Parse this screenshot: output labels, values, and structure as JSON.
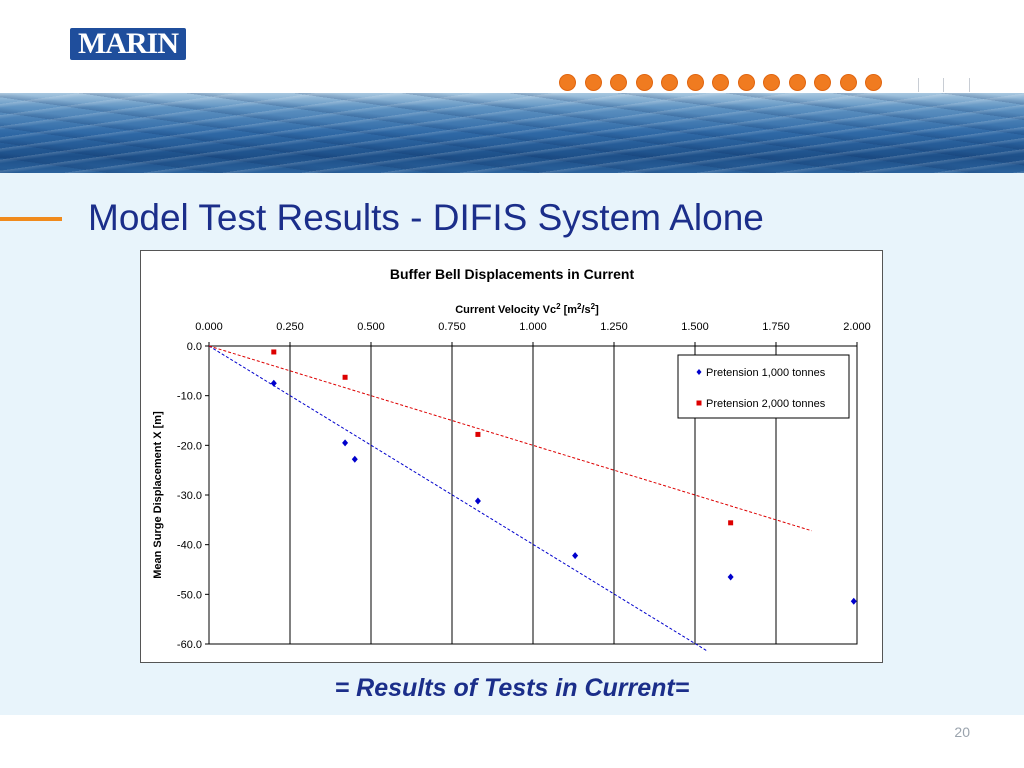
{
  "logo": {
    "text": "MARIN"
  },
  "slide": {
    "title": "Model Test Results - DIFIS System Alone",
    "caption": "= Results of Tests in Current=",
    "page_number": "20"
  },
  "colors": {
    "title": "#1b2e8a",
    "accent_orange": "#f08a1c",
    "series_1000": "#0000cc",
    "series_2000": "#dd0000"
  },
  "decoration": {
    "orange_dots": 13,
    "grey_ticks": 3
  },
  "chart_data": {
    "type": "scatter",
    "title": "Buffer Bell Displacements in Current",
    "xlabel_parts": {
      "base": "Current Velocity Vc",
      "sup1": "2",
      "mid": " [m",
      "sup2": "2",
      "mid2": "/s",
      "sup3": "2",
      "end": "]"
    },
    "ylabel": "Mean Surge Displacement X [m]",
    "x_axis_position": "top",
    "xlim": [
      0,
      2
    ],
    "ylim": [
      -60,
      0
    ],
    "xticks": [
      0,
      0.25,
      0.5,
      0.75,
      1,
      1.25,
      1.5,
      1.75,
      2
    ],
    "xtick_labels": [
      "0.000",
      "0.250",
      "0.500",
      "0.750",
      "1.000",
      "1.250",
      "1.500",
      "1.750",
      "2.000"
    ],
    "yticks": [
      0,
      -10,
      -20,
      -30,
      -40,
      -50,
      -60
    ],
    "ytick_labels": [
      "0.0",
      "-10.0",
      "-20.0",
      "-30.0",
      "-40.0",
      "-50.0",
      "-60.0"
    ],
    "grid": "vertical",
    "legend_position": "top-right",
    "series": [
      {
        "name": "Pretension 1,000 tonnes",
        "marker": "diamond",
        "color": "#0000cc",
        "x": [
          0.2,
          0.42,
          0.45,
          0.83,
          1.13,
          1.61,
          1.99
        ],
        "y": [
          -7.5,
          -19.5,
          -22.8,
          -31.2,
          -42.2,
          -46.5,
          -51.4
        ],
        "trend": {
          "x": [
            0,
            1.54
          ],
          "y": [
            0,
            -61.5
          ]
        }
      },
      {
        "name": "Pretension 2,000 tonnes",
        "marker": "square",
        "color": "#dd0000",
        "x": [
          0.2,
          0.42,
          0.83,
          1.61
        ],
        "y": [
          -1.2,
          -6.3,
          -17.8,
          -35.6
        ],
        "trend": {
          "x": [
            0,
            1.86
          ],
          "y": [
            0,
            -37.2
          ]
        }
      }
    ]
  }
}
